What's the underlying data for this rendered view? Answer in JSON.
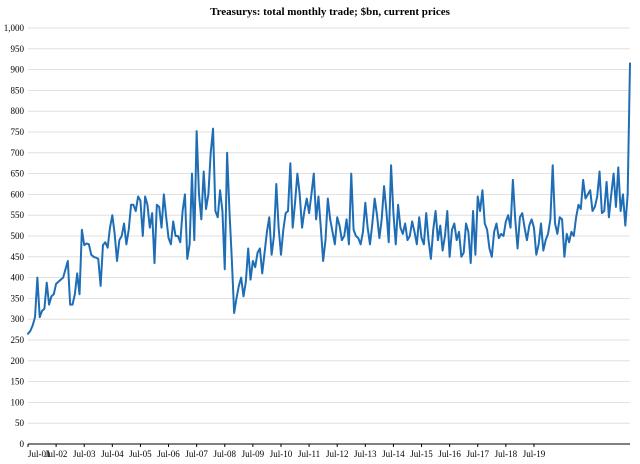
{
  "chart_data": {
    "type": "line",
    "title": "Treasurys: total monthly trade; $bn, current prices",
    "xlabel": "",
    "ylabel": "",
    "ylim": [
      0,
      1000
    ],
    "yticks": [
      {
        "value": 0,
        "label": "0"
      },
      {
        "value": 50,
        "label": "50"
      },
      {
        "value": 100,
        "label": "100"
      },
      {
        "value": 150,
        "label": "150"
      },
      {
        "value": 200,
        "label": "200"
      },
      {
        "value": 250,
        "label": "250"
      },
      {
        "value": 300,
        "label": "300"
      },
      {
        "value": 350,
        "label": "350"
      },
      {
        "value": 400,
        "label": "400"
      },
      {
        "value": 450,
        "label": "450"
      },
      {
        "value": 500,
        "label": "500"
      },
      {
        "value": 550,
        "label": "550"
      },
      {
        "value": 600,
        "label": "600"
      },
      {
        "value": 650,
        "label": "650"
      },
      {
        "value": 700,
        "label": "700"
      },
      {
        "value": 750,
        "label": "750"
      },
      {
        "value": 800,
        "label": "800"
      },
      {
        "value": 850,
        "label": "850"
      },
      {
        "value": 900,
        "label": "900"
      },
      {
        "value": 950,
        "label": "950"
      },
      {
        "value": 1000,
        "label": "1,000"
      }
    ],
    "xticks": [
      "Jul-01",
      "Jul-02",
      "Jul-03",
      "Jul-04",
      "Jul-05",
      "Jul-06",
      "Jul-07",
      "Jul-08",
      "Jul-09",
      "Jul-10",
      "Jul-11",
      "Jul-12",
      "Jul-13",
      "Jul-14",
      "Jul-15",
      "Jul-16",
      "Jul-17",
      "Jul-18",
      "Jul-19"
    ],
    "grid": "horizontal",
    "legend": "none",
    "color": "#1f6eb5",
    "x_start": "Jul-01",
    "x_step": "month",
    "values": [
      265,
      272,
      285,
      305,
      400,
      305,
      320,
      325,
      388,
      335,
      355,
      360,
      385,
      390,
      395,
      400,
      420,
      440,
      335,
      335,
      360,
      410,
      360,
      515,
      478,
      482,
      480,
      455,
      450,
      448,
      445,
      380,
      478,
      485,
      472,
      520,
      550,
      505,
      440,
      490,
      500,
      530,
      480,
      515,
      575,
      575,
      560,
      595,
      585,
      500,
      595,
      575,
      520,
      555,
      435,
      575,
      570,
      520,
      600,
      545,
      495,
      480,
      535,
      500,
      500,
      485,
      560,
      600,
      445,
      480,
      650,
      490,
      752,
      600,
      540,
      655,
      565,
      600,
      700,
      758,
      560,
      545,
      610,
      560,
      420,
      700,
      560,
      445,
      315,
      350,
      380,
      400,
      355,
      390,
      470,
      395,
      440,
      425,
      460,
      470,
      410,
      460,
      510,
      545,
      455,
      500,
      625,
      520,
      455,
      515,
      555,
      560,
      675,
      520,
      580,
      650,
      600,
      520,
      560,
      590,
      555,
      600,
      650,
      540,
      595,
      520,
      440,
      490,
      590,
      540,
      510,
      480,
      545,
      525,
      490,
      500,
      540,
      480,
      650,
      515,
      500,
      495,
      480,
      510,
      580,
      520,
      480,
      530,
      590,
      550,
      495,
      540,
      620,
      560,
      485,
      670,
      555,
      480,
      575,
      520,
      505,
      530,
      490,
      500,
      535,
      510,
      480,
      545,
      495,
      480,
      555,
      490,
      445,
      515,
      560,
      490,
      525,
      465,
      500,
      560,
      450,
      515,
      530,
      490,
      510,
      450,
      460,
      530,
      510,
      435,
      560,
      455,
      595,
      560,
      610,
      530,
      515,
      470,
      450,
      510,
      530,
      495,
      505,
      500,
      535,
      550,
      520,
      635,
      540,
      470,
      545,
      555,
      520,
      490,
      525,
      540,
      520,
      455,
      480,
      530,
      465,
      490,
      505,
      540,
      670,
      530,
      505,
      545,
      540,
      450,
      505,
      485,
      510,
      500,
      545,
      575,
      565,
      635,
      590,
      600,
      610,
      560,
      570,
      595,
      655,
      555,
      560,
      630,
      545,
      600,
      650,
      570,
      665,
      560,
      600,
      525,
      600,
      915
    ]
  }
}
